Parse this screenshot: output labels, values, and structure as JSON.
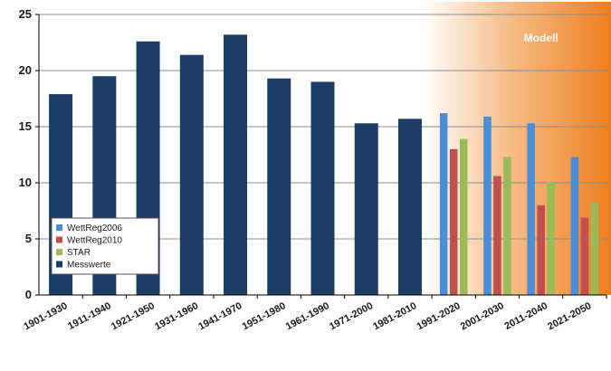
{
  "chart_data": {
    "type": "bar",
    "categories": [
      "1901-1930",
      "1911-1940",
      "1921-1950",
      "1931-1960",
      "1941-1970",
      "1951-1980",
      "1961-1990",
      "1971-2000",
      "1981-2010",
      "1991-2020",
      "2001-2030",
      "2011-2040",
      "2021-2050"
    ],
    "series": [
      {
        "name": "Messwerte",
        "color": "#1c3d66",
        "values": [
          17.9,
          19.5,
          22.6,
          21.4,
          23.2,
          19.3,
          19.0,
          15.3,
          15.7,
          null,
          null,
          null,
          null
        ]
      },
      {
        "name": "WettReg2006",
        "color": "#4a8fd4",
        "values": [
          null,
          null,
          null,
          null,
          null,
          null,
          null,
          null,
          null,
          16.2,
          15.9,
          15.3,
          12.3
        ]
      },
      {
        "name": "WettReg2010",
        "color": "#c0504d",
        "values": [
          null,
          null,
          null,
          null,
          null,
          null,
          null,
          null,
          null,
          13.0,
          10.6,
          8.0,
          6.9
        ]
      },
      {
        "name": "STAR",
        "color": "#9bbb59",
        "values": [
          null,
          null,
          null,
          null,
          null,
          null,
          null,
          null,
          null,
          13.9,
          12.3,
          10.1,
          8.2
        ]
      }
    ],
    "ylim": [
      0,
      25
    ],
    "yticks": [
      "0",
      "5",
      "10",
      "15",
      "20",
      "25"
    ],
    "grid": true,
    "legend_order": [
      "WettReg2006",
      "WettReg2010",
      "STAR",
      "Messwerte"
    ],
    "legend_position": "bottom-left",
    "annotation": "Modell",
    "annotation_color": "#f0872a"
  }
}
